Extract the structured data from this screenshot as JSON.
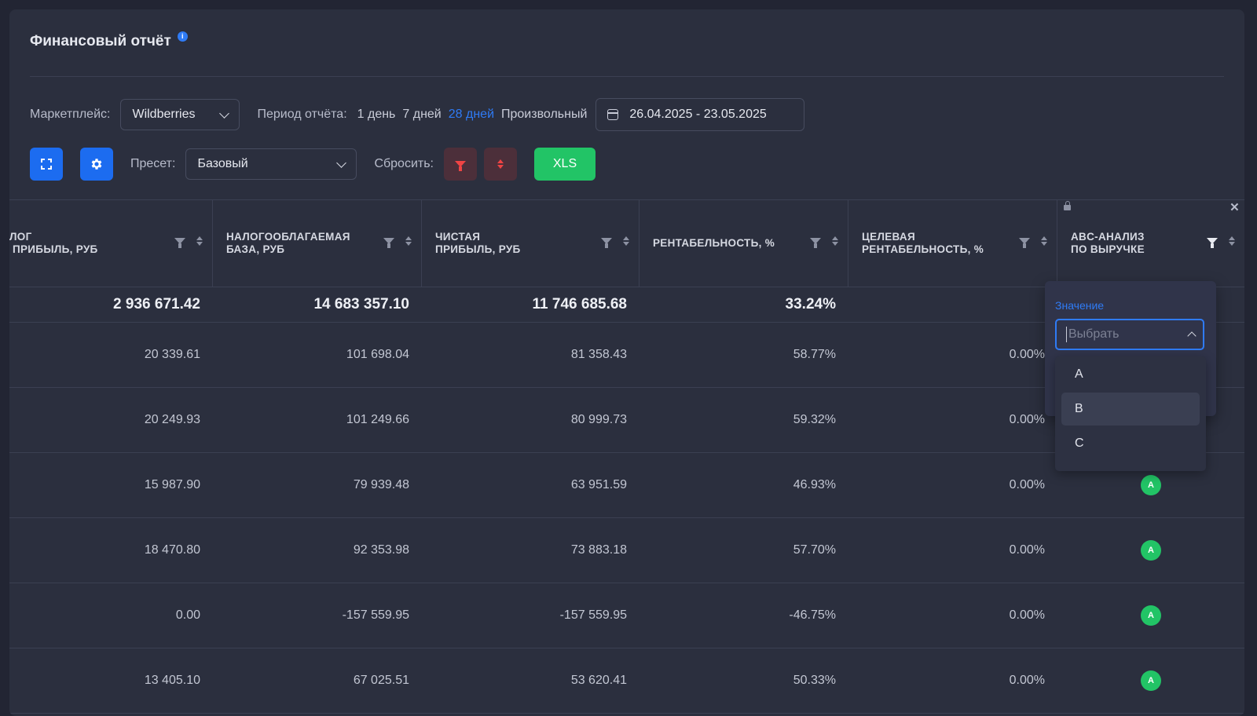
{
  "header": {
    "title": "Финансовый отчёт",
    "info_icon": "i"
  },
  "filters": {
    "marketplace_label": "Маркетплейс:",
    "marketplace_value": "Wildberries",
    "period_label": "Период отчёта:",
    "periods": [
      "1 день",
      "7 дней",
      "28 дней",
      "Произвольный"
    ],
    "active_period": "28 дней",
    "date_range": "26.04.2025 - 23.05.2025",
    "preset_label": "Пресет:",
    "preset_value": "Базовый",
    "reset_label": "Сбросить:",
    "xls_label": "XLS"
  },
  "table": {
    "columns": [
      {
        "line1": "ЛОГ",
        "line2": "ПРИБЫЛЬ, РУБ"
      },
      {
        "line1": "НАЛОГООБЛАГАЕМАЯ",
        "line2": "БАЗА, РУБ"
      },
      {
        "line1": "ЧИСТАЯ",
        "line2": "ПРИБЫЛЬ, РУБ"
      },
      {
        "line1": "РЕНТАБЕЛЬНОСТЬ, %",
        "line2": ""
      },
      {
        "line1": "ЦЕЛЕВАЯ",
        "line2": "РЕНТАБЕЛЬНОСТЬ, %"
      },
      {
        "line1": "ABC-АНАЛИЗ",
        "line2": "ПО ВЫРУЧКЕ"
      }
    ],
    "totals": [
      "2 936 671.42",
      "14 683 357.10",
      "11 746 685.68",
      "33.24%",
      "",
      ""
    ],
    "rows": [
      [
        "20 339.61",
        "101 698.04",
        "81 358.43",
        "58.77%",
        "0.00%",
        ""
      ],
      [
        "20 249.93",
        "101 249.66",
        "80 999.73",
        "59.32%",
        "0.00%",
        ""
      ],
      [
        "15 987.90",
        "79 939.48",
        "63 951.59",
        "46.93%",
        "0.00%",
        "A"
      ],
      [
        "18 470.80",
        "92 353.98",
        "73 883.18",
        "57.70%",
        "0.00%",
        "A"
      ],
      [
        "0.00",
        "-157 559.95",
        "-157 559.95",
        "-46.75%",
        "0.00%",
        "A"
      ],
      [
        "13 405.10",
        "67 025.51",
        "53 620.41",
        "50.33%",
        "0.00%",
        "A"
      ]
    ]
  },
  "dropdown": {
    "label": "Значение",
    "placeholder": "Выбрать",
    "options": [
      "A",
      "B",
      "C"
    ],
    "hovered": "B"
  },
  "colors": {
    "accent": "#1c6cf0",
    "success": "#22c466",
    "danger": "#ef4444"
  }
}
